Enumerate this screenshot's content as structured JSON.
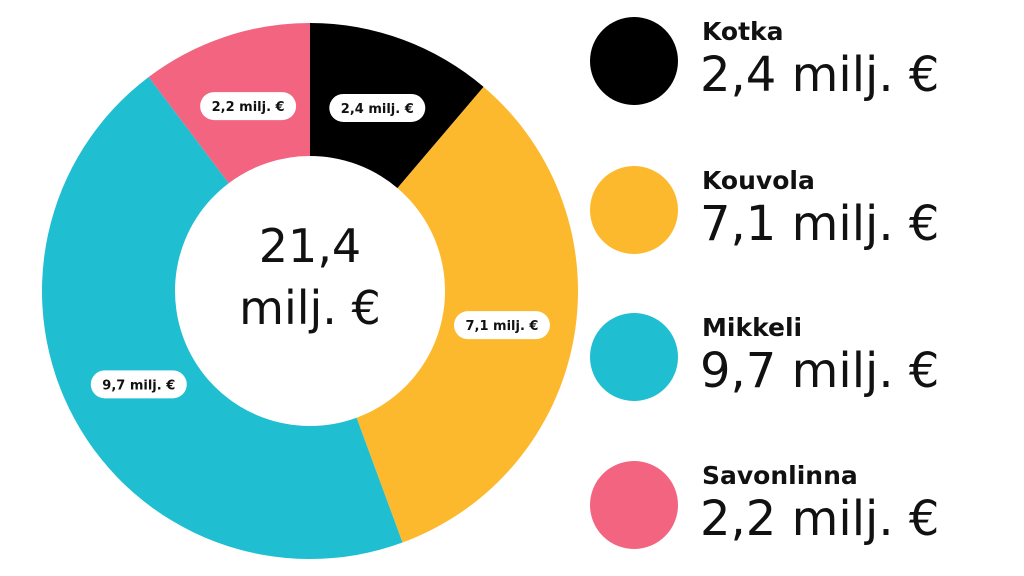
{
  "chart_data": {
    "type": "pie",
    "donut": true,
    "center_label": [
      "21,4",
      "milj. €"
    ],
    "categories": [
      "Kotka",
      "Kouvola",
      "Mikkeli",
      "Savonlinna"
    ],
    "values": [
      2.4,
      7.1,
      9.7,
      2.2
    ],
    "data_labels": [
      "2,4 milj. €",
      "7,1 milj. €",
      "9,7 milj. €",
      "2,2 milj. €"
    ],
    "colors": [
      "#000000",
      "#FDB92D",
      "#1FBED1",
      "#F2647F"
    ],
    "legend_placement": "right",
    "legend": [
      {
        "name": "Kotka",
        "value": "2,4 milj. €"
      },
      {
        "name": "Kouvola",
        "value": "7,1 milj. €"
      },
      {
        "name": "Mikkeli",
        "value": "9,7 milj. €"
      },
      {
        "name": "Savonlinna",
        "value": "2,2 milj. €"
      }
    ]
  }
}
